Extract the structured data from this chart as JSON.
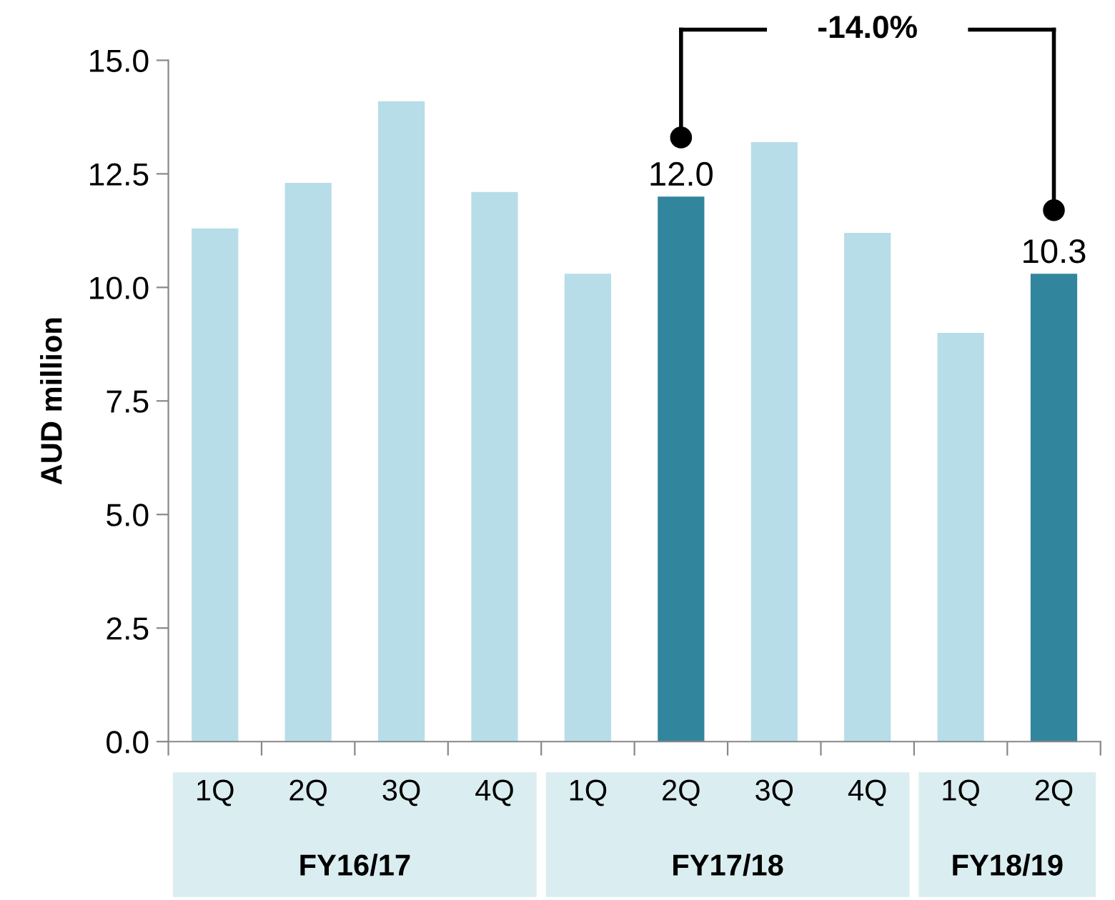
{
  "chart_data": {
    "type": "bar",
    "ylabel": "AUD million",
    "categories": [
      "1Q",
      "2Q",
      "3Q",
      "4Q",
      "1Q",
      "2Q",
      "3Q",
      "4Q",
      "1Q",
      "2Q"
    ],
    "values": [
      11.3,
      12.3,
      14.1,
      12.1,
      10.3,
      12.0,
      13.2,
      11.2,
      9.0,
      10.3
    ],
    "colors": [
      "#b7dde8",
      "#b7dde8",
      "#b7dde8",
      "#b7dde8",
      "#b7dde8",
      "#31859c",
      "#b7dde8",
      "#b7dde8",
      "#b7dde8",
      "#31859c"
    ],
    "value_labels": [
      null,
      null,
      null,
      null,
      null,
      "12.0",
      null,
      null,
      null,
      "10.3"
    ],
    "ylim": [
      0,
      15
    ],
    "yticks": [
      {
        "value": 0,
        "label": "0.0"
      },
      {
        "value": 2.5,
        "label": "2.5"
      },
      {
        "value": 5,
        "label": "5.0"
      },
      {
        "value": 7.5,
        "label": "7.5"
      },
      {
        "value": 10,
        "label": "10.0"
      },
      {
        "value": 12.5,
        "label": "12.5"
      },
      {
        "value": 15,
        "label": "15.0"
      }
    ],
    "annotations": [
      "FY16/17",
      "FY17/18",
      "FY18/19",
      "-14.0%"
    ],
    "grid": false,
    "legend": false
  }
}
